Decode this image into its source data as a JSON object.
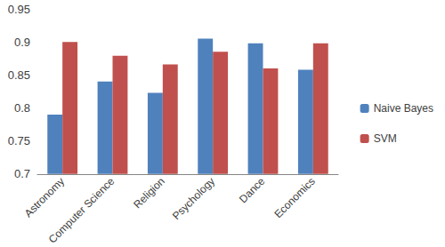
{
  "chart_data": {
    "type": "bar",
    "categories": [
      "Astronomy",
      "Computer Science",
      "Religion",
      "Psychology",
      "Dance",
      "Economics"
    ],
    "series": [
      {
        "name": "Naive Bayes",
        "color": "#4f81bd",
        "values": [
          0.79,
          0.84,
          0.823,
          0.905,
          0.898,
          0.858
        ]
      },
      {
        "name": "SVM",
        "color": "#c0504d",
        "values": [
          0.9,
          0.879,
          0.866,
          0.885,
          0.86,
          0.898
        ]
      }
    ],
    "ylim": [
      0.7,
      0.95
    ],
    "yticks": [
      0.7,
      0.75,
      0.8,
      0.85,
      0.9,
      0.95
    ],
    "grid": false,
    "legend": "right"
  }
}
